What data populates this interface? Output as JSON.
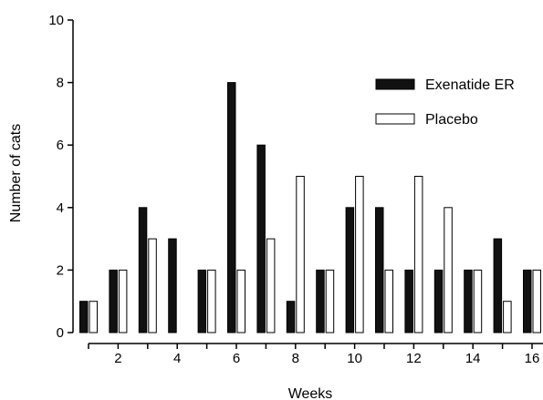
{
  "chart_data": {
    "type": "bar",
    "xlabel": "Weeks",
    "ylabel": "Number of cats",
    "ylim": [
      0,
      10
    ],
    "yticks": [
      "0",
      "2",
      "4",
      "6",
      "8",
      "10"
    ],
    "xticks": [
      "2",
      "4",
      "6",
      "8",
      "10",
      "12",
      "14",
      "16"
    ],
    "categories": [
      1,
      2,
      3,
      4,
      5,
      6,
      7,
      8,
      9,
      10,
      11,
      12,
      13,
      14,
      15,
      16
    ],
    "legend_position": "top-right",
    "grid": false,
    "series": [
      {
        "name": "Exenatide ER",
        "color": "#111111",
        "fill": "solid",
        "values": [
          1,
          2,
          4,
          3,
          2,
          8,
          6,
          1,
          2,
          4,
          4,
          2,
          2,
          2,
          3,
          2
        ]
      },
      {
        "name": "Placebo",
        "color": "#ffffff",
        "fill": "open",
        "values": [
          1,
          2,
          3,
          0,
          2,
          2,
          3,
          5,
          2,
          5,
          2,
          5,
          4,
          2,
          1,
          2
        ]
      }
    ]
  }
}
